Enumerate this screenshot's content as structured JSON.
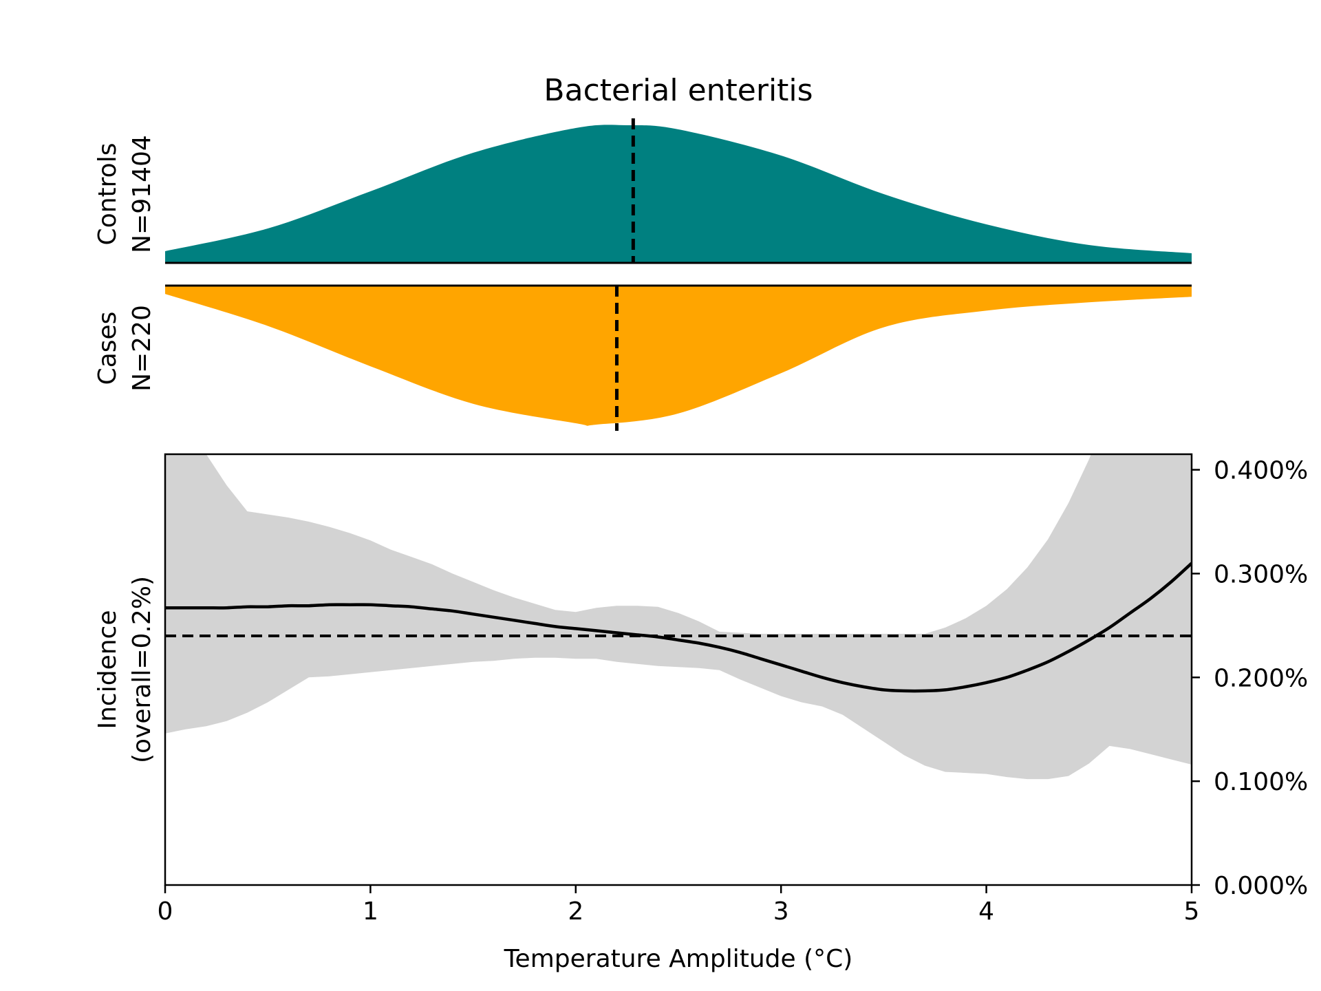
{
  "chart_data": {
    "type": "area",
    "title": "Bacterial enteritis",
    "xlabel": "Temperature Amplitude (°C)",
    "xlim": [
      0,
      5
    ],
    "x_ticks": [
      {
        "value": 0,
        "label": "0"
      },
      {
        "value": 1,
        "label": "1"
      },
      {
        "value": 2,
        "label": "2"
      },
      {
        "value": 3,
        "label": "3"
      },
      {
        "value": 4,
        "label": "4"
      },
      {
        "value": 5,
        "label": "5"
      }
    ],
    "controls": {
      "label_line1": "Controls",
      "label_line2": "N=91404",
      "color": "#008080",
      "median": 2.28,
      "x": [
        0,
        0.5,
        1,
        1.5,
        2,
        2.25,
        2.5,
        3,
        3.5,
        4,
        4.5,
        5
      ],
      "density": [
        0.085,
        0.25,
        0.52,
        0.8,
        0.98,
        1.0,
        0.97,
        0.78,
        0.5,
        0.28,
        0.13,
        0.07
      ]
    },
    "cases": {
      "label_line1": "Cases",
      "label_line2": "N=220",
      "color": "#FFA500",
      "median": 2.2,
      "x": [
        0,
        0.5,
        1,
        1.5,
        2,
        2.1,
        2.5,
        3,
        3.5,
        4,
        4.5,
        5
      ],
      "density": [
        0.06,
        0.29,
        0.58,
        0.85,
        0.99,
        1.0,
        0.92,
        0.63,
        0.3,
        0.18,
        0.12,
        0.08
      ]
    },
    "incidence": {
      "ylabel_line1": "Incidence",
      "ylabel_line2": "(overall=0.2%)",
      "ylim": [
        0,
        0.00415
      ],
      "y_ticks": [
        {
          "value": 0.0,
          "label": "0.000%"
        },
        {
          "value": 0.001,
          "label": "0.100%"
        },
        {
          "value": 0.002,
          "label": "0.200%"
        },
        {
          "value": 0.003,
          "label": "0.300%"
        },
        {
          "value": 0.004,
          "label": "0.400%"
        }
      ],
      "overall": 0.0024,
      "line_color": "#000000",
      "band_color": "#d3d3d3",
      "x": [
        0,
        0.1,
        0.2,
        0.3,
        0.4,
        0.5,
        0.6,
        0.7,
        0.8,
        0.9,
        1.0,
        1.1,
        1.2,
        1.3,
        1.4,
        1.5,
        1.6,
        1.7,
        1.8,
        1.9,
        2.0,
        2.1,
        2.2,
        2.3,
        2.4,
        2.5,
        2.6,
        2.7,
        2.8,
        2.9,
        3.0,
        3.1,
        3.2,
        3.3,
        3.4,
        3.5,
        3.6,
        3.7,
        3.8,
        3.9,
        4.0,
        4.1,
        4.2,
        4.3,
        4.4,
        4.5,
        4.6,
        4.7,
        4.8,
        4.9,
        5.0
      ],
      "estimate": [
        0.00267,
        0.00267,
        0.00267,
        0.00267,
        0.00268,
        0.00268,
        0.00269,
        0.00269,
        0.0027,
        0.0027,
        0.0027,
        0.00269,
        0.00268,
        0.00266,
        0.00264,
        0.00261,
        0.00258,
        0.00255,
        0.00252,
        0.00249,
        0.00247,
        0.00245,
        0.00243,
        0.00241,
        0.00239,
        0.00236,
        0.00233,
        0.00229,
        0.00224,
        0.00218,
        0.00212,
        0.00206,
        0.002,
        0.00195,
        0.00191,
        0.00188,
        0.00187,
        0.00187,
        0.00188,
        0.00191,
        0.00195,
        0.002,
        0.00207,
        0.00215,
        0.00225,
        0.00236,
        0.00248,
        0.00262,
        0.00276,
        0.00292,
        0.0031
      ],
      "upper": [
        0.0047,
        0.0046,
        0.00415,
        0.00385,
        0.0036,
        0.00357,
        0.00354,
        0.0035,
        0.00345,
        0.00339,
        0.00332,
        0.00323,
        0.00316,
        0.00309,
        0.003,
        0.00292,
        0.00284,
        0.00277,
        0.00271,
        0.00265,
        0.00263,
        0.00267,
        0.00269,
        0.00269,
        0.00268,
        0.00262,
        0.00254,
        0.00244,
        0.00243,
        0.00242,
        0.00242,
        0.00242,
        0.00242,
        0.00242,
        0.00242,
        0.00242,
        0.00242,
        0.00242,
        0.00248,
        0.00257,
        0.00269,
        0.00285,
        0.00306,
        0.00333,
        0.00368,
        0.0041,
        0.0046,
        0.0052,
        0.0058,
        0.0064,
        0.007
      ],
      "lower": [
        0.00146,
        0.0015,
        0.00153,
        0.00158,
        0.00166,
        0.00176,
        0.00188,
        0.002,
        0.00201,
        0.00203,
        0.00205,
        0.00207,
        0.00209,
        0.00211,
        0.00213,
        0.00215,
        0.00216,
        0.00218,
        0.00219,
        0.00219,
        0.00218,
        0.00218,
        0.00215,
        0.00213,
        0.00211,
        0.0021,
        0.00209,
        0.00207,
        0.00198,
        0.0019,
        0.00182,
        0.00176,
        0.00172,
        0.00164,
        0.00151,
        0.00138,
        0.00125,
        0.00115,
        0.00109,
        0.00108,
        0.00107,
        0.00104,
        0.00102,
        0.00102,
        0.00105,
        0.00117,
        0.00134,
        0.00131,
        0.00126,
        0.00121,
        0.00116
      ]
    }
  }
}
